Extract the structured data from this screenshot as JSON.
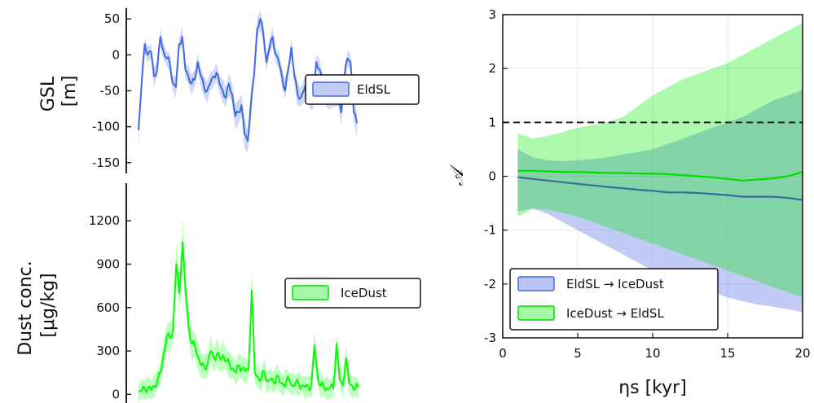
{
  "chart_data": [
    {
      "type": "line",
      "ylabel": "GSL\n[m]",
      "ylim": [
        -165,
        65
      ],
      "yticks": [
        50,
        0,
        -50,
        -100,
        -150
      ],
      "ytick_labels": [
        "50",
        "0",
        "-50",
        "-100",
        "-150"
      ],
      "legend": "right",
      "series": [
        {
          "name": "EldSL",
          "color": "#4169e1",
          "values": [
            -105,
            -40,
            15,
            0,
            5,
            -30,
            -20,
            25,
            5,
            -5,
            -10,
            -40,
            -45,
            15,
            25,
            -20,
            -30,
            -40,
            -35,
            -10,
            -30,
            -45,
            -50,
            -40,
            -30,
            -25,
            -40,
            -50,
            -60,
            -40,
            -55,
            -85,
            -80,
            -70,
            -110,
            -120,
            -70,
            -30,
            35,
            50,
            30,
            -10,
            10,
            25,
            0,
            -10,
            -30,
            -50,
            -20,
            10,
            -30,
            -55,
            -60,
            -50,
            -40,
            -60,
            -60,
            -10,
            -20,
            -40,
            -55,
            -60,
            -60,
            -55,
            -60,
            -80,
            -30,
            -5,
            -10,
            -80,
            -95
          ]
        }
      ]
    },
    {
      "type": "line",
      "ylabel": "Dust conc.\n[μg/kg]",
      "ylim": [
        -60,
        1460
      ],
      "yticks": [
        1200,
        900,
        600,
        300,
        0
      ],
      "ytick_labels": [
        "1200",
        "900",
        "600",
        "300",
        "0"
      ],
      "legend": "right",
      "series": [
        {
          "name": "IceDust",
          "color": "#00ff00",
          "values": [
            20,
            25,
            40,
            45,
            30,
            60,
            90,
            150,
            280,
            400,
            390,
            450,
            900,
            700,
            1050,
            700,
            460,
            350,
            330,
            260,
            200,
            180,
            220,
            300,
            250,
            280,
            240,
            270,
            230,
            200,
            180,
            150,
            200,
            180,
            160,
            170,
            720,
            150,
            120,
            100,
            160,
            90,
            100,
            80,
            130,
            80,
            70,
            90,
            100,
            60,
            80,
            70,
            60,
            50,
            50,
            60,
            340,
            120,
            60,
            50,
            40,
            50,
            40,
            350,
            100,
            60,
            250,
            80,
            60,
            40,
            50
          ]
        }
      ]
    },
    {
      "type": "area",
      "xlabel": "ηs [kyr]",
      "ylabel": "𝒜",
      "xlim": [
        0,
        20
      ],
      "ylim": [
        -3,
        3
      ],
      "xticks": [
        0,
        5,
        10,
        15,
        20
      ],
      "xtick_labels": [
        "0",
        "5",
        "10",
        "15",
        "20"
      ],
      "yticks": [
        3,
        2,
        1,
        0,
        -1,
        -2,
        -3
      ],
      "ytick_labels": [
        "3",
        "2",
        "1",
        "0",
        "-1",
        "-2",
        "-3"
      ],
      "grid": true,
      "legend": "bottom-left",
      "reference_line": {
        "y": 1,
        "style": "dashed",
        "color": "#222222"
      },
      "x": [
        1,
        2,
        3,
        4,
        5,
        6,
        7,
        8,
        9,
        10,
        11,
        12,
        13,
        14,
        15,
        16,
        17,
        18,
        19,
        20
      ],
      "series": [
        {
          "name": "EldSL → IceDust",
          "color": "#4169e1",
          "fill": "rgba(120,140,235,0.45)",
          "values": [
            -0.02,
            -0.05,
            -0.08,
            -0.11,
            -0.14,
            -0.17,
            -0.2,
            -0.22,
            -0.25,
            -0.27,
            -0.3,
            -0.3,
            -0.31,
            -0.33,
            -0.35,
            -0.38,
            -0.38,
            -0.38,
            -0.4,
            -0.44
          ],
          "lower": [
            -0.65,
            -0.6,
            -0.7,
            -0.85,
            -1.0,
            -1.15,
            -1.3,
            -1.45,
            -1.6,
            -1.75,
            -1.85,
            -1.95,
            -2.05,
            -2.15,
            -2.25,
            -2.32,
            -2.38,
            -2.42,
            -2.47,
            -2.52
          ],
          "upper": [
            0.5,
            0.35,
            0.3,
            0.28,
            0.3,
            0.32,
            0.35,
            0.4,
            0.45,
            0.5,
            0.6,
            0.7,
            0.8,
            0.9,
            1.0,
            1.1,
            1.25,
            1.4,
            1.5,
            1.6
          ]
        },
        {
          "name": "IceDust → EldSL",
          "color": "#00dd00",
          "fill": "rgba(0,235,0,0.32)",
          "values": [
            0.1,
            0.1,
            0.09,
            0.08,
            0.08,
            0.07,
            0.06,
            0.06,
            0.05,
            0.05,
            0.04,
            0.02,
            0.0,
            -0.02,
            -0.05,
            -0.08,
            -0.06,
            -0.04,
            0.0,
            0.08
          ],
          "lower": [
            -0.75,
            -0.6,
            -0.62,
            -0.68,
            -0.75,
            -0.85,
            -0.95,
            -1.05,
            -1.15,
            -1.25,
            -1.35,
            -1.45,
            -1.55,
            -1.65,
            -1.75,
            -1.85,
            -1.95,
            -2.05,
            -2.15,
            -2.25
          ],
          "upper": [
            0.8,
            0.7,
            0.75,
            0.82,
            0.9,
            0.95,
            1.0,
            1.1,
            1.3,
            1.5,
            1.65,
            1.8,
            1.9,
            2.0,
            2.1,
            2.25,
            2.4,
            2.55,
            2.7,
            2.85
          ]
        }
      ]
    }
  ]
}
